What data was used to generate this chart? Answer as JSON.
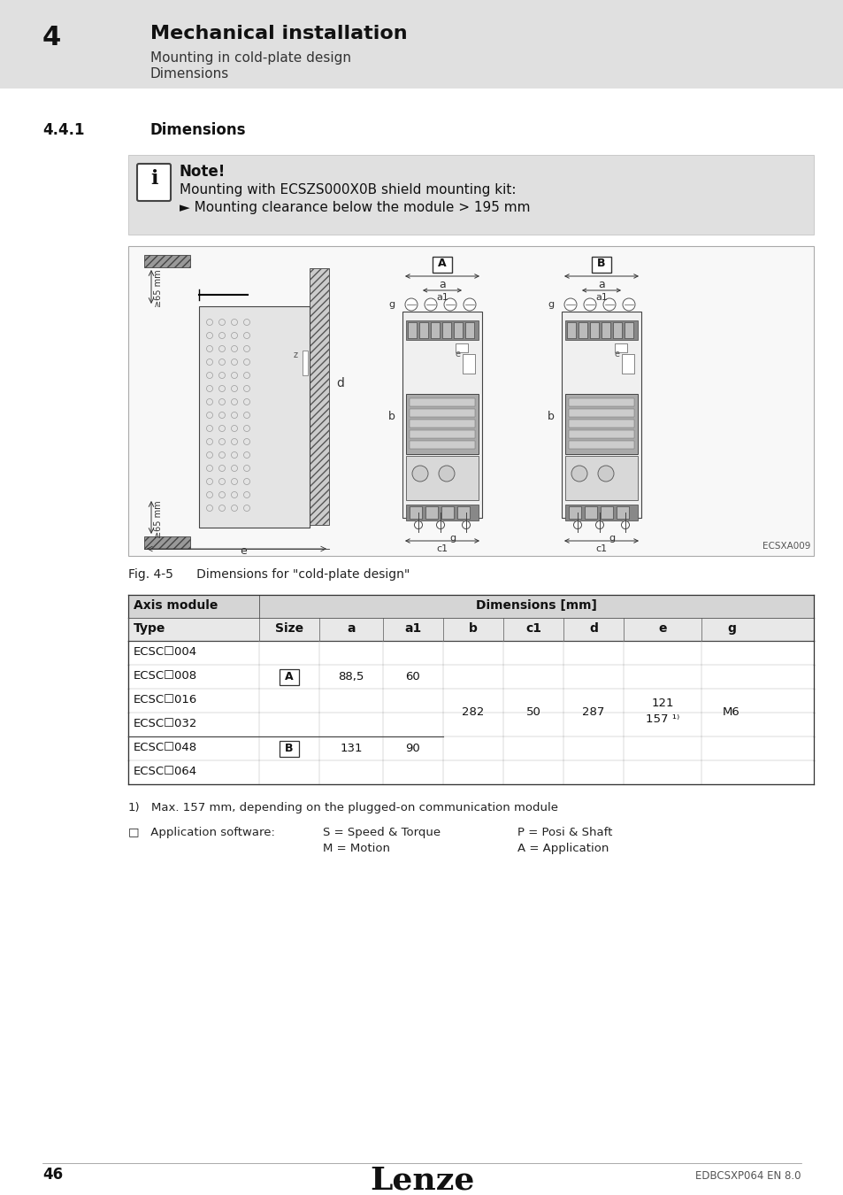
{
  "page_bg": "#ffffff",
  "header_bg": "#e0e0e0",
  "header_num": "4",
  "header_title": "Mechanical installation",
  "header_sub1": "Mounting in cold-plate design",
  "header_sub2": "Dimensions",
  "section_num": "4.4.1",
  "section_title": "Dimensions",
  "note_bg": "#e0e0e0",
  "note_title": "Note!",
  "note_line1": "Mounting with ECSZS000X0B shield mounting kit:",
  "note_line2": "► Mounting clearance below the module > 195 mm",
  "fig_caption": "Fig. 4-5      Dimensions for \"cold-plate design\"",
  "table_header1": "Axis module",
  "table_header2": "Dimensions [mm]",
  "table_cols": [
    "Type",
    "Size",
    "a",
    "a1",
    "b",
    "c1",
    "d",
    "e",
    "g"
  ],
  "footnote1_num": "1)",
  "footnote1_text": "Max. 157 mm, depending on the plugged-on communication module",
  "footnote2_label": "□   Application software:",
  "footnote2_col2a": "S = Speed & Torque",
  "footnote2_col3a": "P = Posi & Shaft",
  "footnote2_col2b": "M = Motion",
  "footnote2_col3b": "A = Application",
  "footer_page": "46",
  "footer_logo": "Lenze",
  "footer_doc": "EDBCSXP064 EN 8.0",
  "draw_bg": "#f8f8f8",
  "draw_border": "#aaaaaa"
}
